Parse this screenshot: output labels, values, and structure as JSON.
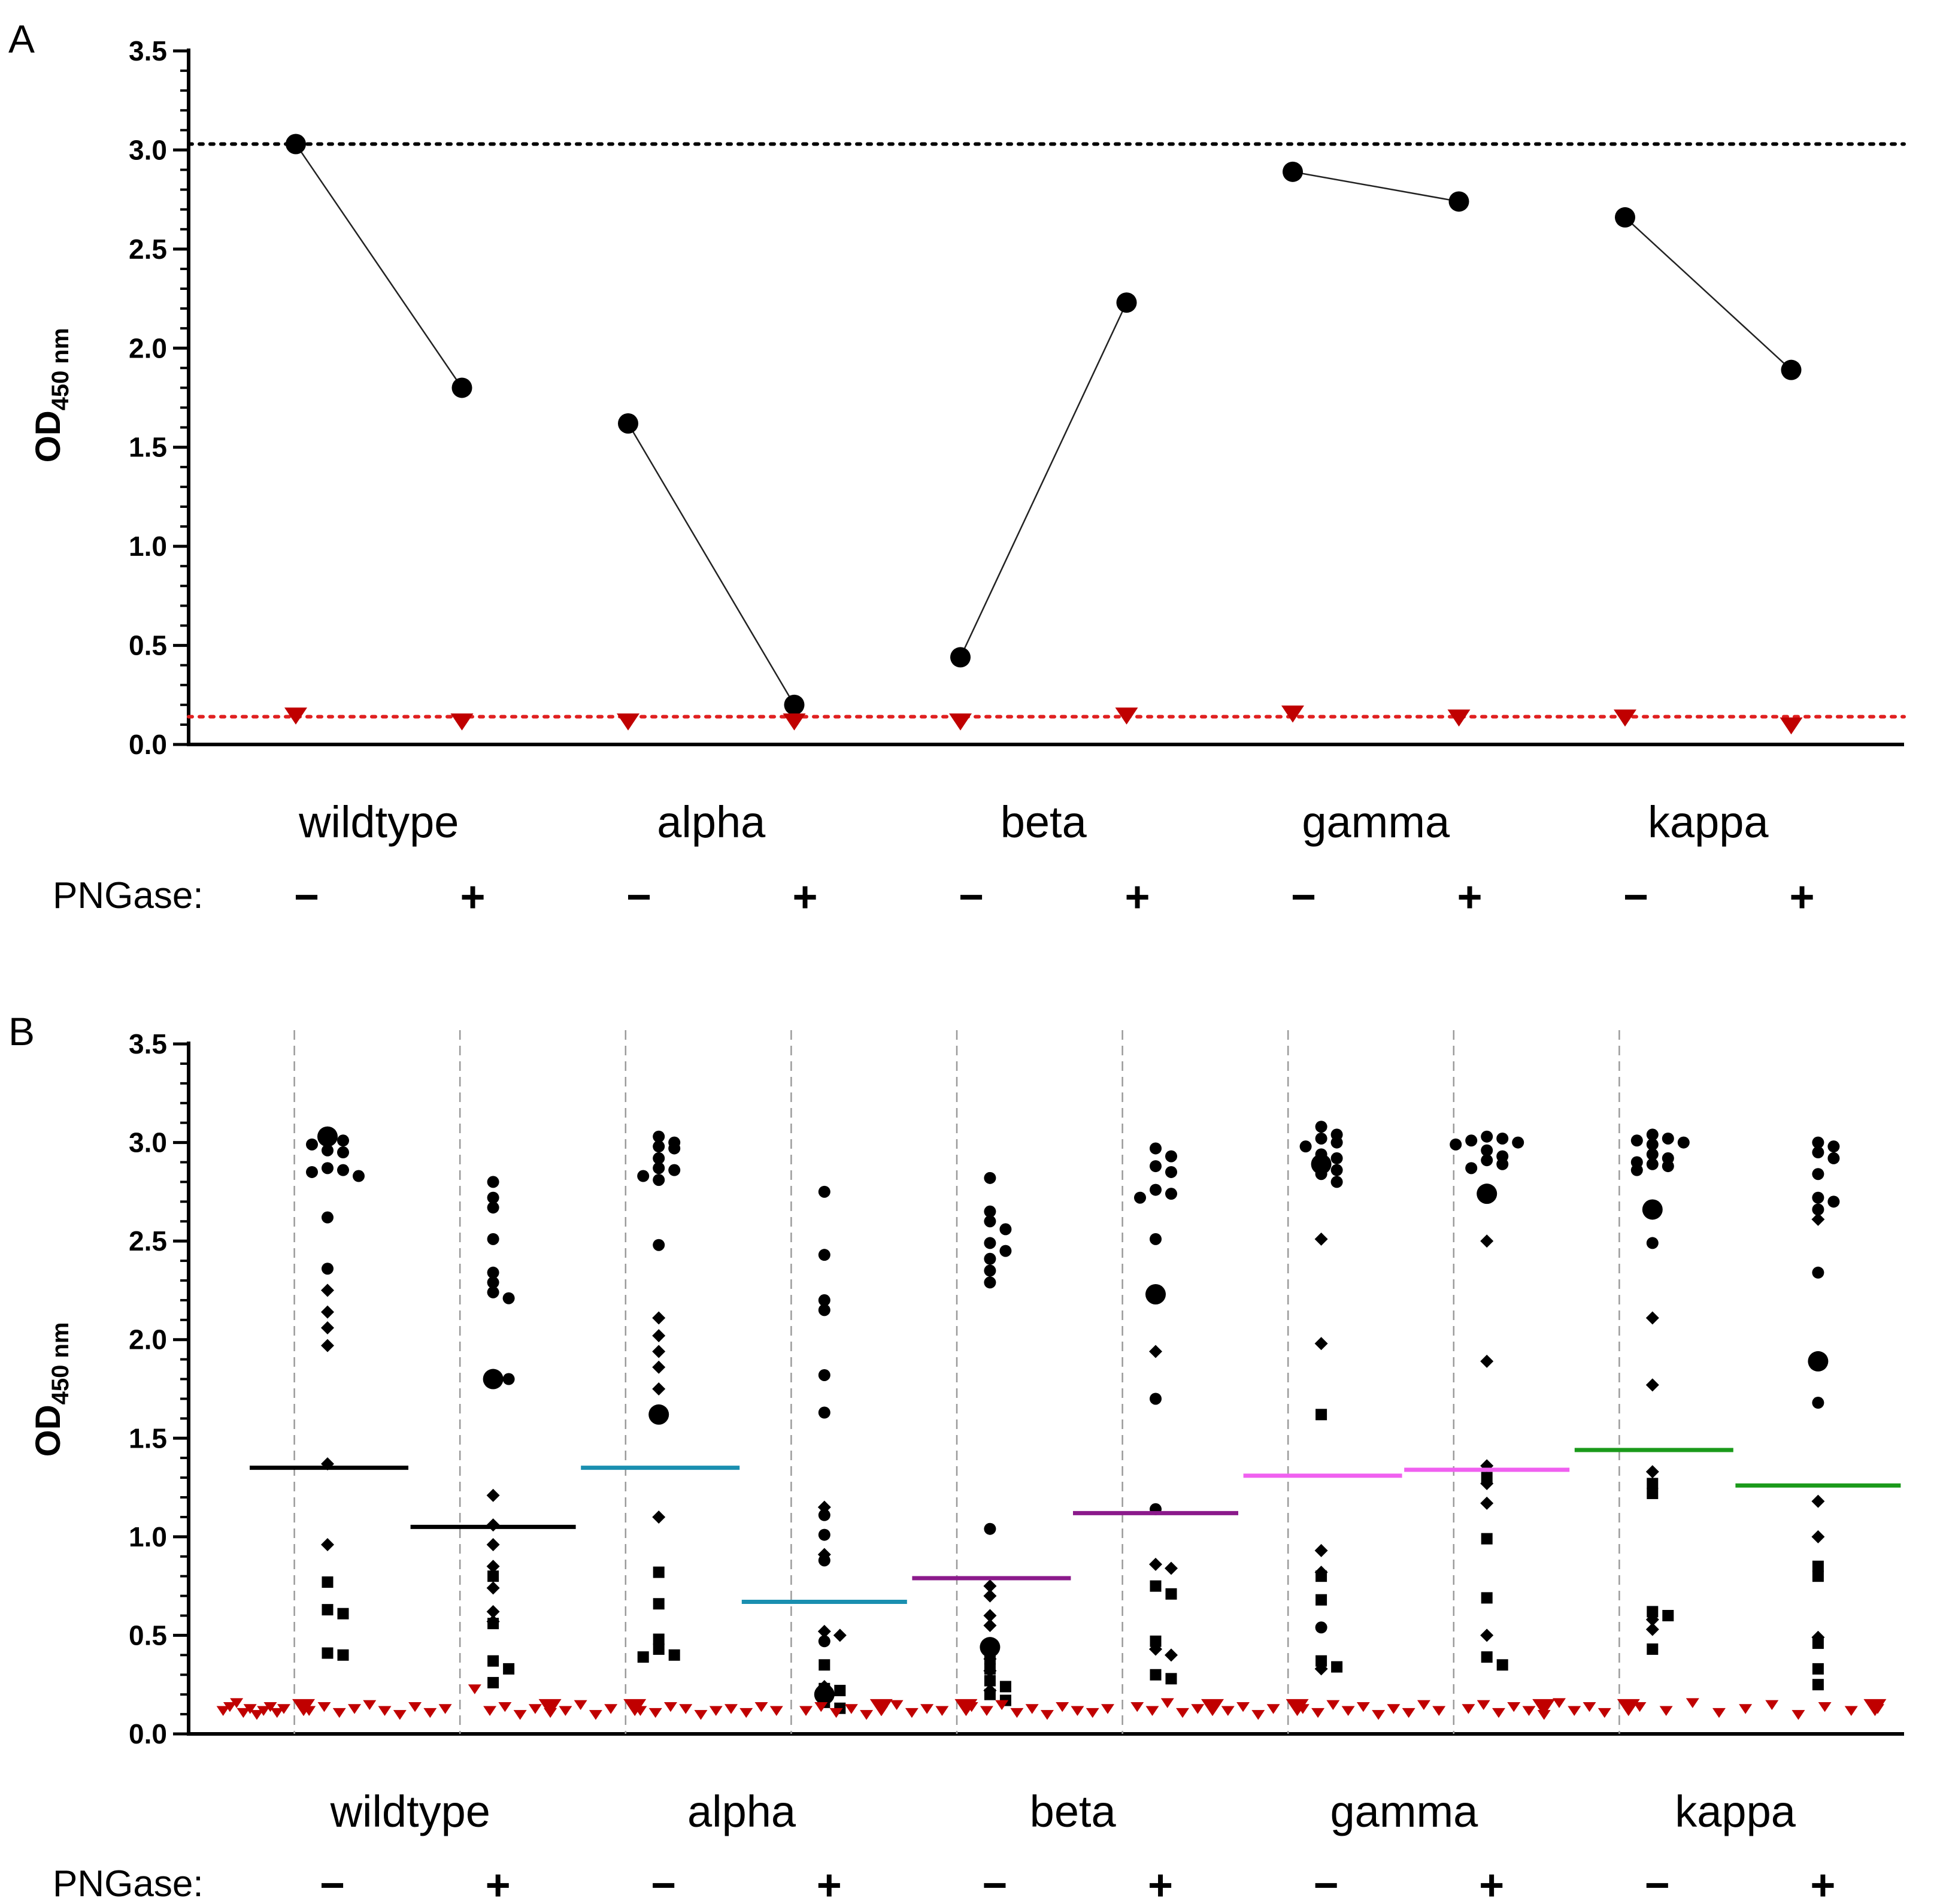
{
  "chart_data": [
    {
      "panel": "A",
      "type": "scatter",
      "ylabel_main": "OD",
      "ylabel_sub": "450 nm",
      "ylim": [
        0,
        3.5
      ],
      "yticks": [
        "0.0",
        "0.5",
        "1.0",
        "1.5",
        "2.0",
        "2.5",
        "3.0",
        "3.5"
      ],
      "categories": [
        "wildtype",
        "alpha",
        "beta",
        "gamma",
        "kappa"
      ],
      "treatment_label": "PNGase:",
      "treatments": [
        "−",
        "+"
      ],
      "series": [
        {
          "name": "Black circles",
          "color": "#000000",
          "values": [
            [
              3.03,
              1.8
            ],
            [
              1.62,
              0.2
            ],
            [
              0.44,
              2.23
            ],
            [
              2.89,
              2.74
            ],
            [
              2.66,
              1.89
            ]
          ]
        },
        {
          "name": "Red triangles",
          "color": "#c00000",
          "values": [
            [
              0.15,
              0.12
            ],
            [
              0.12,
              0.12
            ],
            [
              0.12,
              0.15
            ],
            [
              0.16,
              0.14
            ],
            [
              0.14,
              0.1
            ]
          ]
        }
      ],
      "reference_lines": [
        {
          "y": 3.03,
          "color": "#000000",
          "style": "dotted"
        },
        {
          "y": 0.14,
          "color": "#e02020",
          "style": "dotted"
        }
      ]
    },
    {
      "panel": "B",
      "type": "scatter",
      "ylabel_main": "OD",
      "ylabel_sub": "450 nm",
      "ylim": [
        0,
        3.5
      ],
      "yticks": [
        "0.0",
        "0.5",
        "1.0",
        "1.5",
        "2.0",
        "2.5",
        "3.0",
        "3.5"
      ],
      "categories": [
        "wildtype",
        "alpha",
        "beta",
        "gamma",
        "kappa"
      ],
      "treatment_label": "PNGase:",
      "treatments": [
        "−",
        "+"
      ],
      "groups": [
        {
          "variant": "wildtype",
          "treatment": "−",
          "median": 1.35,
          "median_color": "#000000",
          "highlight": 3.03,
          "circles": [
            3.03,
            3.01,
            2.99,
            2.96,
            2.95,
            2.87,
            2.86,
            2.85,
            2.83,
            2.62,
            2.36
          ],
          "diamonds": [
            2.25,
            2.14,
            2.06,
            1.97,
            1.37,
            0.96
          ],
          "squares": [
            0.77,
            0.63,
            0.61,
            0.41,
            0.4
          ],
          "triangles": [
            0.12,
            0.14,
            0.16,
            0.11,
            0.13,
            0.1,
            0.12,
            0.14,
            0.11,
            0.13
          ]
        },
        {
          "variant": "wildtype",
          "treatment": "+",
          "median": 1.05,
          "median_color": "#000000",
          "highlight": 1.8,
          "circles": [
            2.8,
            2.72,
            2.67,
            2.51,
            2.34,
            2.29,
            2.24,
            2.21,
            1.79,
            1.8
          ],
          "diamonds": [
            1.79,
            1.21,
            1.06,
            0.96,
            0.85,
            0.74,
            0.62,
            0.57
          ],
          "squares": [
            0.8,
            0.56,
            0.37,
            0.33,
            0.26
          ],
          "triangles": [
            0.12,
            0.14,
            0.11,
            0.13,
            0.15,
            0.12,
            0.1,
            0.14,
            0.11,
            0.13
          ]
        },
        {
          "variant": "alpha",
          "treatment": "−",
          "median": 1.35,
          "median_color": "#1a8fb0",
          "highlight": 1.62,
          "circles": [
            3.03,
            3.0,
            2.98,
            2.97,
            2.92,
            2.87,
            2.86,
            2.83,
            2.81,
            2.48
          ],
          "diamonds": [
            2.11,
            2.02,
            1.94,
            1.86,
            1.75,
            1.1
          ],
          "squares": [
            0.82,
            0.66,
            0.48,
            0.43,
            0.4,
            0.39
          ],
          "triangles": [
            0.23,
            0.12,
            0.14,
            0.1,
            0.13,
            0.11,
            0.12,
            0.15,
            0.1,
            0.13
          ]
        },
        {
          "variant": "alpha",
          "treatment": "+",
          "median": 0.67,
          "median_color": "#1a8fb0",
          "highlight": 0.2,
          "circles": [
            2.75,
            2.43,
            2.2,
            2.15,
            1.82,
            1.63,
            1.11,
            1.01,
            0.88,
            0.47
          ],
          "diamonds": [
            1.15,
            0.91,
            0.52,
            0.5,
            0.24,
            0.19
          ],
          "squares": [
            0.35,
            0.23,
            0.22,
            0.16,
            0.13
          ],
          "triangles": [
            0.12,
            0.11,
            0.14,
            0.13,
            0.1,
            0.12,
            0.13,
            0.11,
            0.14,
            0.12
          ]
        },
        {
          "variant": "beta",
          "treatment": "−",
          "median": 0.79,
          "median_color": "#8b1a8b",
          "highlight": 0.44,
          "circles": [
            2.82,
            2.65,
            2.6,
            2.56,
            2.49,
            2.45,
            2.41,
            2.35,
            2.29,
            1.04
          ],
          "diamonds": [
            0.75,
            0.7,
            0.6,
            0.55,
            0.38,
            0.32,
            0.22
          ],
          "squares": [
            0.38,
            0.33,
            0.27,
            0.24,
            0.2,
            0.17
          ],
          "triangles": [
            0.12,
            0.14,
            0.11,
            0.13,
            0.1,
            0.12,
            0.15,
            0.11,
            0.13,
            0.12
          ]
        },
        {
          "variant": "beta",
          "treatment": "+",
          "median": 1.12,
          "median_color": "#8b1a8b",
          "highlight": 2.23,
          "circles": [
            2.97,
            2.93,
            2.88,
            2.85,
            2.76,
            2.74,
            2.72,
            2.51,
            1.7,
            1.14
          ],
          "diamonds": [
            1.94,
            0.86,
            0.84,
            0.43,
            0.4
          ],
          "squares": [
            0.75,
            0.71,
            0.47,
            0.3,
            0.28
          ],
          "triangles": [
            0.14,
            0.12,
            0.15,
            0.11,
            0.13,
            0.1,
            0.14,
            0.12,
            0.11,
            0.13
          ]
        },
        {
          "variant": "gamma",
          "treatment": "−",
          "median": 1.31,
          "median_color": "#f060f0",
          "highlight": 2.89,
          "circles": [
            3.08,
            3.04,
            3.02,
            3.0,
            2.98,
            2.94,
            2.92,
            2.89,
            2.86,
            2.84,
            2.8,
            0.54
          ],
          "diamonds": [
            2.51,
            1.98,
            0.93,
            0.82,
            0.33
          ],
          "squares": [
            1.62,
            0.8,
            0.68,
            0.37,
            0.34
          ],
          "triangles": [
            0.14,
            0.12,
            0.16,
            0.11,
            0.13,
            0.15,
            0.12,
            0.14,
            0.1,
            0.13
          ]
        },
        {
          "variant": "gamma",
          "treatment": "+",
          "median": 1.34,
          "median_color": "#f060f0",
          "highlight": 2.74,
          "circles": [
            3.03,
            3.02,
            3.01,
            3.0,
            2.99,
            2.96,
            2.93,
            2.91,
            2.89,
            2.87,
            2.74
          ],
          "diamonds": [
            2.5,
            1.89,
            1.36,
            1.27,
            1.17,
            0.5
          ],
          "squares": [
            1.3,
            0.99,
            0.69,
            0.39,
            0.35
          ],
          "triangles": [
            0.13,
            0.11,
            0.15,
            0.12,
            0.14,
            0.1,
            0.13,
            0.11,
            0.15,
            0.12
          ]
        },
        {
          "variant": "kappa",
          "treatment": "−",
          "median": 1.44,
          "median_color": "#1a9a1a",
          "highlight": 2.66,
          "circles": [
            3.04,
            3.02,
            3.01,
            3.0,
            2.99,
            2.94,
            2.92,
            2.9,
            2.89,
            2.88,
            2.86,
            2.49
          ],
          "diamonds": [
            2.11,
            1.77,
            1.33,
            0.58,
            0.53
          ],
          "squares": [
            1.27,
            1.22,
            0.62,
            0.6,
            0.43
          ],
          "triangles": [
            0.13,
            0.15,
            0.11,
            0.14,
            0.12,
            0.1,
            0.16,
            0.12,
            0.14,
            0.11
          ]
        },
        {
          "variant": "kappa",
          "treatment": "+",
          "median": 1.26,
          "median_color": "#1a9a1a",
          "highlight": 1.89,
          "circles": [
            3.0,
            2.98,
            2.95,
            2.92,
            2.84,
            2.72,
            2.7,
            2.66,
            2.34,
            1.68
          ],
          "diamonds": [
            2.61,
            1.89,
            1.18,
            1.0,
            0.49
          ],
          "squares": [
            0.85,
            0.8,
            0.46,
            0.33,
            0.25
          ],
          "triangles": [
            0.14,
            0.12,
            0.16,
            0.11,
            0.13,
            0.15,
            0.1,
            0.14,
            0.12,
            0.13
          ]
        }
      ]
    }
  ]
}
